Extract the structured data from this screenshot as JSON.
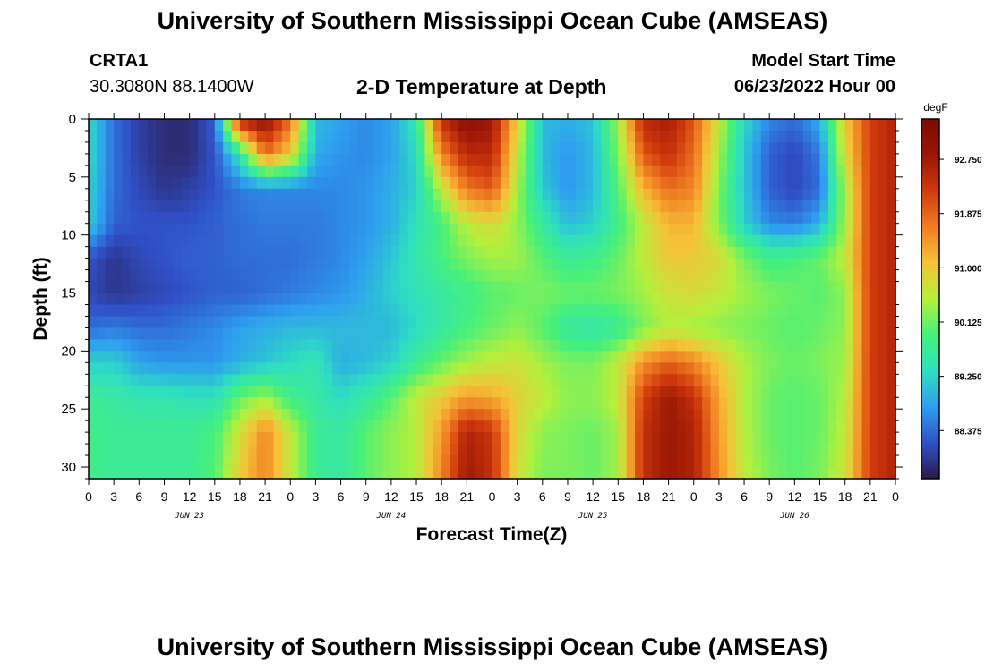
{
  "header": {
    "title": "University of Southern Mississippi Ocean Cube (AMSEAS)",
    "station": "CRTA1",
    "coords": "30.3080N  88.1400W",
    "subtitle": "2-D Temperature at Depth",
    "model_start_label": "Model Start Time",
    "model_start_value": "06/23/2022 Hour 00"
  },
  "footer": {
    "title": "University of Southern Mississippi Ocean Cube (AMSEAS)"
  },
  "chart_data": {
    "type": "heatmap",
    "title": "2-D Temperature at Depth",
    "xlabel": "Forecast Time(Z)",
    "ylabel": "Depth (ft)",
    "x_range_hours": [
      0,
      96
    ],
    "y_range_ft": [
      0,
      31
    ],
    "x_ticks": [
      "0",
      "3",
      "6",
      "9",
      "12",
      "15",
      "18",
      "21",
      "0",
      "3",
      "6",
      "9",
      "12",
      "15",
      "18",
      "21",
      "0",
      "3",
      "6",
      "9",
      "12",
      "15",
      "18",
      "21",
      "0",
      "3",
      "6",
      "9",
      "12",
      "15",
      "18",
      "21",
      "0"
    ],
    "date_labels": [
      "JUN 23",
      "JUN 24",
      "JUN 25",
      "JUN 26"
    ],
    "y_ticks": [
      "0",
      "5",
      "10",
      "15",
      "20",
      "25",
      "30"
    ],
    "colorbar": {
      "unit": "degF",
      "range": [
        87.6,
        93.4
      ],
      "ticks": [
        "92.750",
        "91.875",
        "91.000",
        "90.125",
        "89.250",
        "88.375"
      ],
      "colors": [
        "#2b1a4a",
        "#3050c8",
        "#2e9ef0",
        "#2ee0c0",
        "#46f07a",
        "#b4f03c",
        "#f6c238",
        "#f07e22",
        "#d03a0c",
        "#9a1606",
        "#7a0c04"
      ]
    },
    "depth_levels_ft": [
      0,
      3,
      6,
      9,
      12,
      15,
      18,
      21,
      24,
      27,
      31
    ],
    "time_hours": [
      0,
      3,
      6,
      9,
      12,
      15,
      18,
      21,
      24,
      27,
      30,
      33,
      36,
      39,
      42,
      45,
      48,
      51,
      54,
      57,
      60,
      63,
      66,
      69,
      72,
      75,
      78,
      81,
      84,
      87,
      90,
      93,
      96
    ],
    "values_degF": [
      [
        89.3,
        88.4,
        88.0,
        87.8,
        87.8,
        88.3,
        92.6,
        93.0,
        91.8,
        89.0,
        88.8,
        88.6,
        88.8,
        89.5,
        92.4,
        93.1,
        92.8,
        90.9,
        89.0,
        88.9,
        89.1,
        90.4,
        92.5,
        92.7,
        92.0,
        90.6,
        89.3,
        88.6,
        88.4,
        88.9,
        91.0,
        92.2,
        92.6
      ],
      [
        89.3,
        88.4,
        88.0,
        87.8,
        87.8,
        88.2,
        89.5,
        91.8,
        91.0,
        88.9,
        88.7,
        88.6,
        88.8,
        89.3,
        91.6,
        92.5,
        92.5,
        90.6,
        89.0,
        88.7,
        89.0,
        90.2,
        92.0,
        92.4,
        91.8,
        90.4,
        89.1,
        88.3,
        88.1,
        88.5,
        90.8,
        92.2,
        92.6
      ],
      [
        89.2,
        88.4,
        88.1,
        87.9,
        88.0,
        88.2,
        88.5,
        88.6,
        88.6,
        88.6,
        88.6,
        88.7,
        88.9,
        89.2,
        90.6,
        91.7,
        92.0,
        90.4,
        89.1,
        88.7,
        89.0,
        90.0,
        91.2,
        91.8,
        91.6,
        90.2,
        89.1,
        88.3,
        88.1,
        88.4,
        90.4,
        92.2,
        92.6
      ],
      [
        89.2,
        88.3,
        88.2,
        88.2,
        88.2,
        88.3,
        88.4,
        88.5,
        88.5,
        88.5,
        88.6,
        88.7,
        88.9,
        89.4,
        89.9,
        90.6,
        90.8,
        90.3,
        89.6,
        89.0,
        89.2,
        89.8,
        90.6,
        91.2,
        91.2,
        90.2,
        89.2,
        88.6,
        88.5,
        88.9,
        90.4,
        92.2,
        92.6
      ],
      [
        88.2,
        87.9,
        88.1,
        88.2,
        88.3,
        88.3,
        88.4,
        88.4,
        88.4,
        88.5,
        88.6,
        88.8,
        89.1,
        89.5,
        89.9,
        90.2,
        90.4,
        90.4,
        90.0,
        89.7,
        89.8,
        90.1,
        90.6,
        91.0,
        91.0,
        90.8,
        90.2,
        89.8,
        89.9,
        90.1,
        90.6,
        92.2,
        92.6
      ],
      [
        88.1,
        87.9,
        88.0,
        88.1,
        88.2,
        88.3,
        88.3,
        88.4,
        88.5,
        88.6,
        88.7,
        88.9,
        89.2,
        89.4,
        89.6,
        89.8,
        90.0,
        90.1,
        90.2,
        90.1,
        90.1,
        90.2,
        90.4,
        90.7,
        90.8,
        90.6,
        90.4,
        90.2,
        90.1,
        90.0,
        90.3,
        92.2,
        92.6
      ],
      [
        88.4,
        88.5,
        88.4,
        88.4,
        88.5,
        88.6,
        88.8,
        88.9,
        89.0,
        89.0,
        89.0,
        89.0,
        89.0,
        89.3,
        89.6,
        89.9,
        90.1,
        90.3,
        90.0,
        89.6,
        89.5,
        89.7,
        90.2,
        90.5,
        90.4,
        90.3,
        90.2,
        90.1,
        90.0,
        90.1,
        90.3,
        92.2,
        92.6
      ],
      [
        89.2,
        89.2,
        88.8,
        88.7,
        88.7,
        88.7,
        88.9,
        89.1,
        89.3,
        89.5,
        88.9,
        89.0,
        89.2,
        89.7,
        90.1,
        90.4,
        90.6,
        90.7,
        90.4,
        90.2,
        90.2,
        90.6,
        91.5,
        91.9,
        91.6,
        91.0,
        90.5,
        90.2,
        90.1,
        90.2,
        90.4,
        92.2,
        92.6
      ],
      [
        89.7,
        89.6,
        89.5,
        89.5,
        89.4,
        89.4,
        90.1,
        90.4,
        89.8,
        89.6,
        89.3,
        89.6,
        90.0,
        90.6,
        91.0,
        91.4,
        91.3,
        90.9,
        90.6,
        90.3,
        90.3,
        90.6,
        92.2,
        92.8,
        92.4,
        91.3,
        90.5,
        90.1,
        90.0,
        90.1,
        90.5,
        92.2,
        92.6
      ],
      [
        89.8,
        89.7,
        89.7,
        89.7,
        89.7,
        89.9,
        90.7,
        91.6,
        90.6,
        89.7,
        89.6,
        90.0,
        90.3,
        90.5,
        91.4,
        92.6,
        92.3,
        90.8,
        90.3,
        90.2,
        90.1,
        90.4,
        92.4,
        92.8,
        92.6,
        91.4,
        90.5,
        90.1,
        90.0,
        90.1,
        90.6,
        92.2,
        92.6
      ],
      [
        89.8,
        89.7,
        89.7,
        89.7,
        89.7,
        90.0,
        91.0,
        91.6,
        90.6,
        89.7,
        89.6,
        90.0,
        90.3,
        90.5,
        91.6,
        92.8,
        92.4,
        90.7,
        90.2,
        90.2,
        90.1,
        90.4,
        92.4,
        92.8,
        92.6,
        91.5,
        90.6,
        90.2,
        90.0,
        90.2,
        90.7,
        92.2,
        92.6
      ]
    ]
  }
}
